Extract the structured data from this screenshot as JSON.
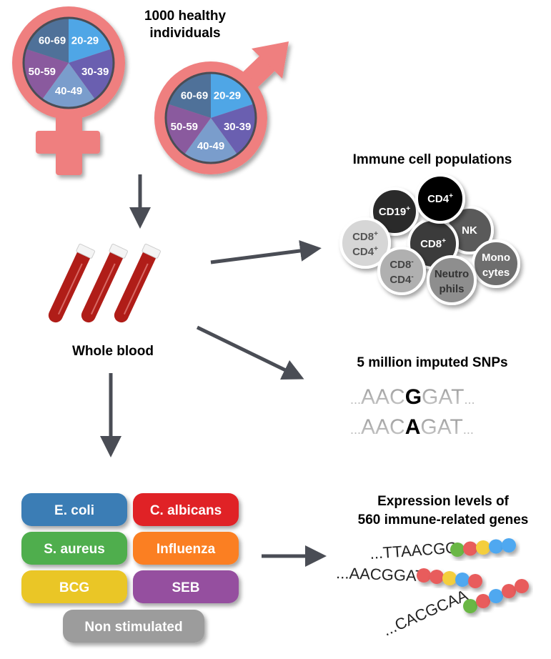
{
  "cohort": {
    "title_line1": "1000 healthy",
    "title_line2": "individuals",
    "age_groups": [
      "20-29",
      "30-39",
      "40-49",
      "50-59",
      "60-69"
    ],
    "age_colors": [
      "#4fa6e6",
      "#6a5fb0",
      "#7a9dcc",
      "#8a5a9e",
      "#4f7199"
    ],
    "symbol_color": "#ef7f7f"
  },
  "blood": {
    "label": "Whole blood",
    "color": "#b01d18"
  },
  "immune_cells": {
    "title": "Immune cell populations",
    "cells": [
      {
        "line1": "CD19",
        "sup1": "+",
        "line2": "",
        "sup2": "",
        "fill": "#2a2a2a",
        "text": "#fff"
      },
      {
        "line1": "NK",
        "sup1": "",
        "line2": "",
        "sup2": "",
        "fill": "#5a5a5a",
        "text": "#fff"
      },
      {
        "line1": "CD8",
        "sup1": "+",
        "line2": "",
        "sup2": "",
        "fill": "#3a3a3a",
        "text": "#fff"
      },
      {
        "line1": "CD4",
        "sup1": "+",
        "line2": "",
        "sup2": "",
        "fill": "#050505",
        "text": "#fff"
      },
      {
        "line1": "CD8",
        "sup1": "+",
        "line2": "CD4",
        "sup2": "+",
        "fill": "#d6d6d6",
        "text": "#555"
      },
      {
        "line1": "Mono",
        "sup1": "",
        "line2": "cytes",
        "sup2": "",
        "fill": "#6e6e6e",
        "text": "#fff"
      },
      {
        "line1": "CD8",
        "sup1": "-",
        "line2": "CD4",
        "sup2": "-",
        "fill": "#b0b0b0",
        "text": "#444"
      },
      {
        "line1": "Neutro",
        "sup1": "",
        "line2": "phils",
        "sup2": "",
        "fill": "#8e8e8e",
        "text": "#333"
      }
    ]
  },
  "snps": {
    "title": "5 million imputed SNPs",
    "rows": [
      {
        "prefix": "...",
        "pre": "AAC",
        "variant": "G",
        "post": "GAT",
        "suffix": "..."
      },
      {
        "prefix": "...",
        "pre": "AAC",
        "variant": "A",
        "post": "GAT",
        "suffix": "..."
      }
    ]
  },
  "stimuli": [
    {
      "label": "E. coli",
      "color": "#3a7db5"
    },
    {
      "label": "C. albicans",
      "color": "#e02328"
    },
    {
      "label": "S. aureus",
      "color": "#4fae4e"
    },
    {
      "label": "Influenza",
      "color": "#fb7f24"
    },
    {
      "label": "BCG",
      "color": "#eac628"
    },
    {
      "label": "SEB",
      "color": "#954f9f"
    },
    {
      "label": "Non stimulated",
      "color": "#9c9c9c"
    }
  ],
  "expression": {
    "title_line1": "Expression levels of",
    "title_line2": "560 immune-related genes",
    "rows": [
      {
        "seq": "...TTAACGG",
        "beads": [
          "#6ab744",
          "#e85c5c",
          "#f4ce3c",
          "#4fa8f0",
          "#4fa8f0"
        ]
      },
      {
        "seq": "...AACGGAT",
        "beads": [
          "#e85c5c",
          "#e85c5c",
          "#f4ce3c",
          "#4fa8f0",
          "#e85c5c"
        ]
      },
      {
        "seq": "...CACGCAA",
        "beads": [
          "#6ab744",
          "#e85c5c",
          "#4fa8f0",
          "#e85c5c",
          "#e85c5c"
        ]
      }
    ]
  },
  "arrow_color": "#4a4d55"
}
